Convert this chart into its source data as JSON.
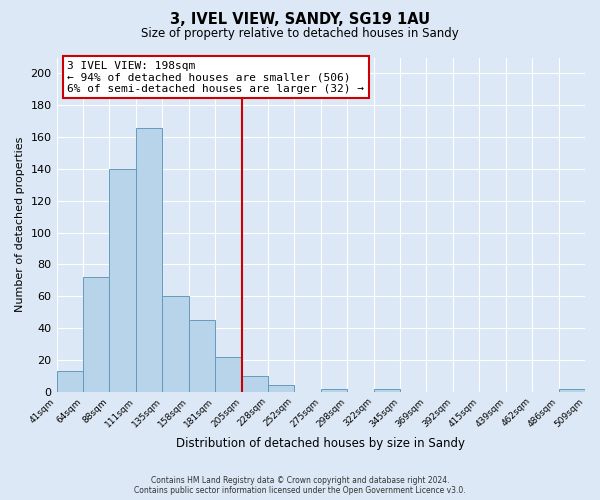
{
  "title": "3, IVEL VIEW, SANDY, SG19 1AU",
  "subtitle": "Size of property relative to detached houses in Sandy",
  "xlabel": "Distribution of detached houses by size in Sandy",
  "ylabel": "Number of detached properties",
  "footer_line1": "Contains HM Land Registry data © Crown copyright and database right 2024.",
  "footer_line2": "Contains public sector information licensed under the Open Government Licence v3.0.",
  "bin_labels": [
    "41sqm",
    "64sqm",
    "88sqm",
    "111sqm",
    "135sqm",
    "158sqm",
    "181sqm",
    "205sqm",
    "228sqm",
    "252sqm",
    "275sqm",
    "298sqm",
    "322sqm",
    "345sqm",
    "369sqm",
    "392sqm",
    "415sqm",
    "439sqm",
    "462sqm",
    "486sqm",
    "509sqm"
  ],
  "bar_heights": [
    13,
    72,
    140,
    166,
    60,
    45,
    22,
    10,
    4,
    0,
    2,
    0,
    2,
    0,
    0,
    0,
    0,
    0,
    0,
    2
  ],
  "bar_color": "#b8d4ea",
  "bar_edge_color": "#6699bb",
  "vline_color": "#cc0000",
  "annotation_title": "3 IVEL VIEW: 198sqm",
  "annotation_line1": "← 94% of detached houses are smaller (506)",
  "annotation_line2": "6% of semi-detached houses are larger (32) →",
  "annotation_box_color": "#ffffff",
  "annotation_box_edge": "#cc0000",
  "ylim": [
    0,
    210
  ],
  "yticks": [
    0,
    20,
    40,
    60,
    80,
    100,
    120,
    140,
    160,
    180,
    200
  ],
  "background_color": "#dce8f5",
  "grid_color": "#ffffff",
  "num_bins": 20
}
